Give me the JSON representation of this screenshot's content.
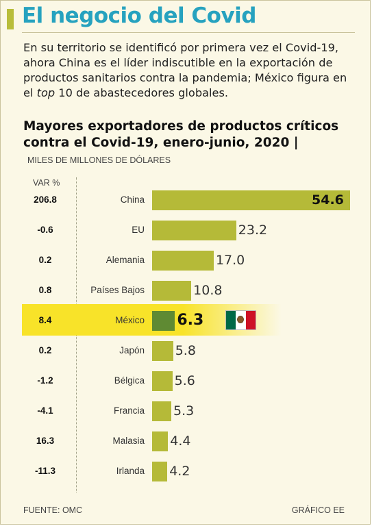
{
  "header": {
    "title": "El negocio del Covid",
    "intro_1": "En su territorio se identificó por primera vez el Covid-19, ahora China es el líder indiscutible en la exportación de productos sanitarios contra la pandemia; México figura en el ",
    "intro_em": "top",
    "intro_2": " 10 de abastecedores globales."
  },
  "chart_data": {
    "type": "bar",
    "orientation": "horizontal",
    "title": "Mayores exportadores de productos críticos contra el Covid-19, enero-junio, 2020 |",
    "units": "MILES DE MILLONES DE DÓLARES",
    "var_header": "VAR %",
    "categories": [
      "China",
      "EU",
      "Alemania",
      "Países Bajos",
      "México",
      "Japón",
      "Bélgica",
      "Francia",
      "Malasia",
      "Irlanda"
    ],
    "values": [
      54.6,
      23.2,
      17.0,
      10.8,
      6.3,
      5.8,
      5.6,
      5.3,
      4.4,
      4.2
    ],
    "value_labels": [
      "54.6",
      "23.2",
      "17.0",
      "10.8",
      "6.3",
      "5.8",
      "5.6",
      "5.3",
      "4.4",
      "4.2"
    ],
    "var_pct": [
      "206.8",
      "-0.6",
      "0.2",
      "0.8",
      "8.4",
      "0.2",
      "-1.2",
      "-4.1",
      "16.3",
      "-11.3"
    ],
    "highlight": "México",
    "xlim": [
      0,
      54.6
    ],
    "grid": false,
    "legend": "none"
  },
  "colors": {
    "title": "#26a2bf",
    "accent_bar": "#b8bd3a",
    "bar": "#b5ba38",
    "bar_highlight": "#5f8a33",
    "highlight_band": "#f8e329",
    "flag_green": "#006847",
    "flag_white": "#ffffff",
    "flag_red": "#ce1126"
  },
  "footer": {
    "source": "FUENTE: OMC",
    "credit": "GRÁFICO EE"
  }
}
